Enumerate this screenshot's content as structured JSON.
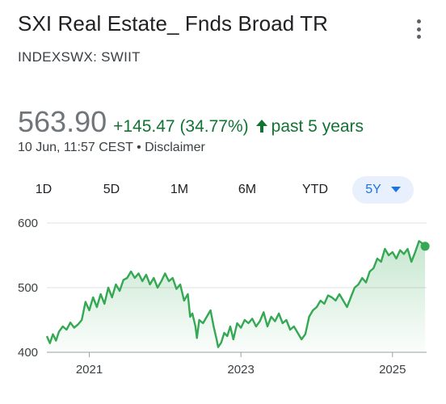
{
  "header": {
    "title": "SXI Real Estate_ Fnds Broad TR",
    "ticker": "INDEXSWX: SWIIT",
    "menu_icon": "more-vert-icon"
  },
  "quote": {
    "price": "563.90",
    "change": "+145.47 (34.77%)",
    "period": "past 5 years",
    "timestamp": "10 Jun, 11:57 CEST",
    "separator": "•",
    "disclaimer": "Disclaimer"
  },
  "colors": {
    "up": "#137333",
    "line": "#34a853",
    "accent": "#1a73e8",
    "active_tab_bg": "#e8f0fe"
  },
  "tabs": [
    {
      "label": "1D",
      "active": false
    },
    {
      "label": "5D",
      "active": false
    },
    {
      "label": "1M",
      "active": false
    },
    {
      "label": "6M",
      "active": false
    },
    {
      "label": "YTD",
      "active": false
    },
    {
      "label": "5Y",
      "active": true
    }
  ],
  "chart_data": {
    "type": "area",
    "ylim": [
      400,
      600
    ],
    "yticks": [
      "400",
      "500",
      "600"
    ],
    "xticks": [
      {
        "label": "2021",
        "x": 2021.0
      },
      {
        "label": "2023",
        "x": 2023.0
      },
      {
        "label": "2025",
        "x": 2025.0
      }
    ],
    "xlim": [
      2020.44,
      2025.45
    ],
    "grid": true,
    "series": [
      {
        "points": [
          [
            2020.44,
            425
          ],
          [
            2020.48,
            414
          ],
          [
            2020.52,
            428
          ],
          [
            2020.56,
            418
          ],
          [
            2020.6,
            432
          ],
          [
            2020.65,
            440
          ],
          [
            2020.7,
            435
          ],
          [
            2020.75,
            446
          ],
          [
            2020.8,
            438
          ],
          [
            2020.85,
            443
          ],
          [
            2020.9,
            450
          ],
          [
            2020.95,
            478
          ],
          [
            2021.0,
            465
          ],
          [
            2021.05,
            485
          ],
          [
            2021.1,
            470
          ],
          [
            2021.15,
            490
          ],
          [
            2021.2,
            475
          ],
          [
            2021.25,
            500
          ],
          [
            2021.3,
            485
          ],
          [
            2021.35,
            505
          ],
          [
            2021.4,
            495
          ],
          [
            2021.45,
            512
          ],
          [
            2021.5,
            515
          ],
          [
            2021.55,
            525
          ],
          [
            2021.6,
            515
          ],
          [
            2021.65,
            522
          ],
          [
            2021.7,
            510
          ],
          [
            2021.75,
            520
          ],
          [
            2021.8,
            505
          ],
          [
            2021.85,
            515
          ],
          [
            2021.9,
            500
          ],
          [
            2021.95,
            510
          ],
          [
            2022.0,
            522
          ],
          [
            2022.05,
            510
          ],
          [
            2022.1,
            515
          ],
          [
            2022.15,
            498
          ],
          [
            2022.2,
            505
          ],
          [
            2022.25,
            480
          ],
          [
            2022.3,
            490
          ],
          [
            2022.33,
            455
          ],
          [
            2022.36,
            460
          ],
          [
            2022.4,
            440
          ],
          [
            2022.42,
            422
          ],
          [
            2022.45,
            450
          ],
          [
            2022.5,
            445
          ],
          [
            2022.55,
            455
          ],
          [
            2022.6,
            465
          ],
          [
            2022.64,
            440
          ],
          [
            2022.68,
            420
          ],
          [
            2022.7,
            408
          ],
          [
            2022.74,
            415
          ],
          [
            2022.78,
            430
          ],
          [
            2022.82,
            425
          ],
          [
            2022.86,
            440
          ],
          [
            2022.9,
            420
          ],
          [
            2022.95,
            445
          ],
          [
            2023.0,
            438
          ],
          [
            2023.05,
            450
          ],
          [
            2023.1,
            445
          ],
          [
            2023.15,
            452
          ],
          [
            2023.2,
            440
          ],
          [
            2023.25,
            448
          ],
          [
            2023.3,
            462
          ],
          [
            2023.35,
            440
          ],
          [
            2023.4,
            455
          ],
          [
            2023.45,
            448
          ],
          [
            2023.5,
            460
          ],
          [
            2023.55,
            445
          ],
          [
            2023.6,
            450
          ],
          [
            2023.65,
            435
          ],
          [
            2023.7,
            440
          ],
          [
            2023.75,
            430
          ],
          [
            2023.8,
            420
          ],
          [
            2023.85,
            428
          ],
          [
            2023.9,
            455
          ],
          [
            2023.95,
            465
          ],
          [
            2024.0,
            470
          ],
          [
            2024.05,
            480
          ],
          [
            2024.1,
            475
          ],
          [
            2024.15,
            488
          ],
          [
            2024.2,
            485
          ],
          [
            2024.25,
            480
          ],
          [
            2024.3,
            490
          ],
          [
            2024.35,
            480
          ],
          [
            2024.4,
            470
          ],
          [
            2024.45,
            485
          ],
          [
            2024.5,
            500
          ],
          [
            2024.55,
            505
          ],
          [
            2024.6,
            515
          ],
          [
            2024.65,
            508
          ],
          [
            2024.7,
            525
          ],
          [
            2024.75,
            530
          ],
          [
            2024.8,
            545
          ],
          [
            2024.85,
            540
          ],
          [
            2024.9,
            560
          ],
          [
            2024.95,
            550
          ],
          [
            2025.0,
            555
          ],
          [
            2025.05,
            545
          ],
          [
            2025.1,
            558
          ],
          [
            2025.15,
            552
          ],
          [
            2025.2,
            560
          ],
          [
            2025.25,
            540
          ],
          [
            2025.3,
            555
          ],
          [
            2025.35,
            572
          ],
          [
            2025.4,
            568
          ],
          [
            2025.43,
            564
          ]
        ]
      }
    ]
  }
}
